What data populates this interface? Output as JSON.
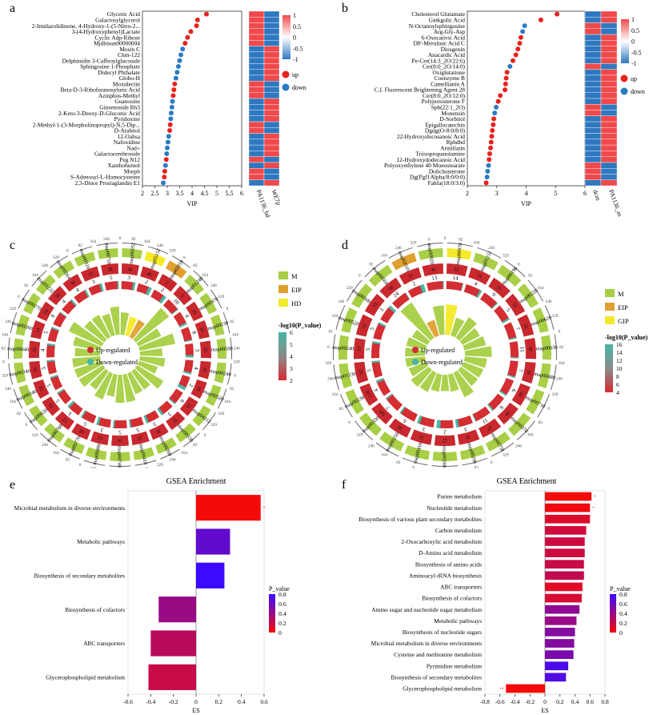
{
  "panel_labels": [
    "a",
    "b",
    "c",
    "d",
    "e",
    "f"
  ],
  "chart_data": [
    {
      "panel": "a",
      "type": "scatter",
      "subtype": "vip-dot-plot-with-heatmap",
      "xlabel": "VIP",
      "xlim": [
        2,
        6
      ],
      "xticks": [
        "2",
        "2.5",
        "3",
        "3.5",
        "4",
        "4.5",
        "5",
        "5.5",
        "6"
      ],
      "categories": [
        "Glyceric Acid",
        "Galactosylglycerol",
        "2-Imidazolidinone, 4-Hydroxy-1-(5-Nitro-2...",
        "3-(4-Hydroxyphenyl)Lactate",
        "Cyclic Adp-Ribose",
        "Mjdbisun00000004",
        "Mosin C",
        "Chm-122",
        "Delphinidin 3-Caffeoylglucoside",
        "Sphingosine 1-Phosphate",
        "Didecyl Phthalate",
        "Globo-H",
        "Moxidectin",
        "Beta-D-3-Ribofuranosyluric Acid",
        "Azinphos-Methyl",
        "Guanosine",
        "Ginsenoside Rh3",
        "2-Keto-3-Deoxy-D-Gluconic Acid",
        "Pyridoxine",
        "2-Methyl-1-(3-Morpholinopropyl)-N,5-Dip...",
        "D-Arabitol",
        "12-Oahsa",
        "Nafoxidine",
        "Nad+",
        "Galactocerebroside",
        "Peg N12",
        "Xanthohumol",
        "Morph",
        "S-Adenosyl-L-Homocysteine",
        "2,3-Dinor Prostaglandin E1"
      ],
      "vip": [
        4.58,
        4.22,
        4.18,
        3.95,
        3.82,
        3.72,
        3.62,
        3.55,
        3.5,
        3.45,
        3.4,
        3.35,
        3.3,
        3.27,
        3.24,
        3.21,
        3.19,
        3.16,
        3.14,
        3.12,
        3.1,
        3.06,
        3.03,
        3.0,
        2.98,
        2.96,
        2.93,
        2.9,
        2.88,
        2.84
      ],
      "regulation": [
        "up",
        "up",
        "up",
        "up",
        "up",
        "up",
        "down",
        "down",
        "down",
        "down",
        "down",
        "down",
        "up",
        "up",
        "up",
        "down",
        "down",
        "down",
        "down",
        "up",
        "up",
        "down",
        "down",
        "down",
        "down",
        "up",
        "down",
        "up",
        "up",
        "down"
      ],
      "heatmap_columns": [
        "PA1136_bd",
        "WE7p"
      ],
      "heatmap_values": [
        [
          1,
          -1
        ],
        [
          1,
          -1
        ],
        [
          1,
          -1
        ],
        [
          1,
          -1
        ],
        [
          1,
          -1
        ],
        [
          1,
          -1
        ],
        [
          -1,
          1
        ],
        [
          -1,
          1
        ],
        [
          -1,
          1
        ],
        [
          -1,
          1
        ],
        [
          -1,
          1
        ],
        [
          -1,
          1
        ],
        [
          1,
          -1
        ],
        [
          1,
          -1
        ],
        [
          1,
          -1
        ],
        [
          -1,
          1
        ],
        [
          -1,
          1
        ],
        [
          -1,
          1
        ],
        [
          -1,
          1
        ],
        [
          1,
          -1
        ],
        [
          1,
          -1
        ],
        [
          -1,
          1
        ],
        [
          -1,
          1
        ],
        [
          -1,
          1
        ],
        [
          -1,
          1
        ],
        [
          1,
          -1
        ],
        [
          -1,
          1
        ],
        [
          1,
          -1
        ],
        [
          1,
          -1
        ],
        [
          -1,
          1
        ]
      ],
      "colorbar_ticks": [
        "1",
        "0.5",
        "0",
        "-0.5",
        "-1"
      ],
      "legend": [
        "up",
        "down"
      ],
      "colors": {
        "up": "#e8211d",
        "down": "#2a7bc4",
        "high": "#f0494b",
        "low": "#2f78c0"
      }
    },
    {
      "panel": "b",
      "type": "scatter",
      "subtype": "vip-dot-plot-with-heatmap",
      "xlabel": "VIP",
      "xlim": [
        2,
        6
      ],
      "xticks": [
        "2",
        "3",
        "4",
        "5",
        "6"
      ],
      "categories": [
        "Cholesterol Glutamate",
        "Ginkgolic Acid",
        "N-Octanoylsphingosine",
        "Arg-Gly-Asp",
        "6-Oxocativic Acid",
        "D8'-Merulinic Acid C",
        "Diosgenin",
        "Anacardic Acid",
        "Pe-Cer(14:3_2O/22:6)",
        "Cer(8:0_2O/14:0)",
        "Oxiglutatione",
        "Coenzyme B",
        "Camellianin A",
        "C.I. Fluorescent Brightening Agent 28",
        "Cer(8:0_2O/12:0)",
        "Polyporusterone F",
        "Spb(22:1_2O)",
        "Monensin",
        "D-Sorbitol",
        "Epigallocatechin",
        "Dgdg(O-8:0/8:0)",
        "22-Hydroxydocosanoic Acid",
        "Rphdhd",
        "Armillatin",
        "Triisopropanolamine",
        "12-Hydroxydodecanoic Acid",
        "Polyoxyethylene 40 Monostearate",
        "Dolichosterone",
        "Dg(Pgf1Alpha/8:0/0:0)",
        "Fahfa(18:0/3:0)"
      ],
      "vip": [
        5.05,
        4.5,
        3.95,
        3.88,
        3.82,
        3.78,
        3.72,
        3.65,
        3.55,
        3.45,
        3.35,
        3.32,
        3.3,
        3.28,
        3.12,
        3.05,
        2.98,
        2.93,
        2.9,
        2.88,
        2.85,
        2.83,
        2.81,
        2.79,
        2.76,
        2.74,
        2.72,
        2.69,
        2.67,
        2.64
      ],
      "regulation": [
        "up",
        "up",
        "down",
        "down",
        "up",
        "up",
        "up",
        "up",
        "up",
        "down",
        "up",
        "up",
        "up",
        "up",
        "up",
        "up",
        "down",
        "down",
        "up",
        "up",
        "up",
        "up",
        "up",
        "up",
        "up",
        "up",
        "down",
        "down",
        "down",
        "up"
      ],
      "heatmap_columns": [
        "dcas",
        "PA1136_as"
      ],
      "heatmap_values": [
        [
          -1,
          1
        ],
        [
          -1,
          1
        ],
        [
          1,
          -1
        ],
        [
          1,
          -1
        ],
        [
          -1,
          1
        ],
        [
          -1,
          1
        ],
        [
          -1,
          1
        ],
        [
          -1,
          1
        ],
        [
          -1,
          1
        ],
        [
          1,
          -1
        ],
        [
          -1,
          1
        ],
        [
          -1,
          1
        ],
        [
          -1,
          1
        ],
        [
          -1,
          1
        ],
        [
          -1,
          1
        ],
        [
          -1,
          1
        ],
        [
          1,
          -1
        ],
        [
          1,
          -1
        ],
        [
          -1,
          1
        ],
        [
          -1,
          1
        ],
        [
          -1,
          1
        ],
        [
          -1,
          1
        ],
        [
          -1,
          1
        ],
        [
          -1,
          1
        ],
        [
          -1,
          1
        ],
        [
          -1,
          1
        ],
        [
          1,
          -1
        ],
        [
          1,
          -1
        ],
        [
          1,
          -1
        ],
        [
          -1,
          1
        ]
      ],
      "colorbar_ticks": [
        "1",
        "0.5",
        "0",
        "-0.5",
        "-1"
      ],
      "legend": [
        "up",
        "down"
      ],
      "colors": {
        "up": "#e8211d",
        "down": "#2a7bc4",
        "high": "#f0494b",
        "low": "#2f78c0"
      }
    },
    {
      "panel": "c",
      "type": "circos",
      "categories": [
        "map00052",
        "map05152",
        "map02010",
        "map01240",
        "map00970",
        "map00230",
        "map00500",
        "map00240",
        "map00520",
        "map04212",
        "map00330",
        "map00260",
        "map00410",
        "map00740",
        "map00480",
        "map00770",
        "map00760",
        "map00620",
        "map00340",
        "map00340",
        "map00640",
        "map00360",
        "map00270",
        "map01232",
        "map00564",
        "map00310",
        "map00710"
      ],
      "kegg_class": [
        "M",
        "HD",
        "EIP",
        "M",
        "M",
        "M",
        "M",
        "M",
        "M",
        "M",
        "M",
        "M",
        "M",
        "M",
        "M",
        "M",
        "M",
        "M",
        "M",
        "M",
        "M",
        "M",
        "M",
        "M",
        "M",
        "M",
        "M"
      ],
      "outer_counts": [
        "46",
        "46",
        "2",
        "5",
        "19",
        "87",
        "25",
        "35",
        "29",
        "11",
        "32",
        "35",
        "35",
        "16",
        "52",
        "65",
        "12",
        "29",
        "32",
        "35",
        "33",
        "21",
        "34",
        "50",
        "38",
        "22",
        "38"
      ],
      "up_regulated": [
        3,
        2,
        2,
        10,
        4,
        8,
        3,
        4,
        2,
        6,
        3,
        3,
        5,
        5,
        3,
        5,
        3,
        5,
        5,
        5,
        4,
        5,
        8,
        4,
        4,
        3,
        5
      ],
      "legend_class": [
        "M",
        "EIP",
        "HD"
      ],
      "legend_reg": [
        "Up-regulated",
        "Down-regulated"
      ],
      "colorbar_title": "-log10(P_value)",
      "colorbar_ticks": [
        "6",
        "5",
        "4",
        "3",
        "2"
      ],
      "scale_ticks": [
        "0",
        "82",
        "164",
        "246",
        "329"
      ],
      "colors": {
        "M": "#a8cf45",
        "EIP": "#e0a030",
        "HD": "#f4ea2a",
        "GIP": "#f4ea2a",
        "up": "#d42d32",
        "down": "#47b6a6",
        "ring": "#c8282e"
      }
    },
    {
      "panel": "d",
      "type": "circos",
      "categories": [
        "map00970",
        "map01232",
        "map00190",
        "map00220",
        "map00620",
        "map00630",
        "map00480",
        "map00710",
        "map00270",
        "map00750",
        "map00290",
        "map00260",
        "map00410",
        "map00250",
        "map00330",
        "map00230",
        "map01230",
        "map00240",
        "map00520",
        "map00500",
        "map00564",
        "map02010",
        "map00920"
      ],
      "kegg_class": [
        "GIP",
        "M",
        "M",
        "M",
        "M",
        "M",
        "M",
        "M",
        "M",
        "M",
        "M",
        "M",
        "M",
        "M",
        "M",
        "M",
        "M",
        "M",
        "M",
        "M",
        "M",
        "EIP",
        "M"
      ],
      "outer_counts": [
        "92",
        "14",
        "25",
        "55",
        "36",
        "38",
        "38",
        "16",
        "39",
        "47",
        "33",
        "22",
        "35",
        "28",
        "320",
        "138",
        "92",
        "17",
        "25",
        "33",
        "50",
        "15",
        "46"
      ],
      "up_regulated": [
        14,
        4,
        9,
        5,
        7,
        11,
        7,
        6,
        6,
        11,
        3,
        2,
        3,
        6,
        7,
        4,
        5,
        5,
        5,
        3,
        24,
        2,
        13
      ],
      "legend_class": [
        "M",
        "EIP",
        "GIP"
      ],
      "legend_reg": [
        "Up-regulated",
        "Down-regulated"
      ],
      "colorbar_title": "-log10(P_value)",
      "colorbar_ticks": [
        "16",
        "14",
        "12",
        "10",
        "8",
        "6",
        "4"
      ],
      "scale_ticks": [
        "0",
        "82",
        "164",
        "246",
        "329"
      ],
      "colors": {
        "M": "#a8cf45",
        "EIP": "#e0a030",
        "HD": "#f4ea2a",
        "GIP": "#f4ea2a",
        "up": "#d42d32",
        "down": "#47b6a6",
        "ring": "#c8282e"
      }
    },
    {
      "panel": "e",
      "type": "bar",
      "orientation": "horizontal",
      "title": "GSEA Enrichment",
      "xlabel": "ES",
      "xlim": [
        -0.6,
        0.6
      ],
      "xticks": [
        "-0.6",
        "-0.4",
        "-0.2",
        "0",
        "0.2",
        "0.4",
        "0.6"
      ],
      "categories": [
        "Microbial metabolism in diverse environments",
        "Metabolic pathways",
        "Biosynthesis of secondary metabolites",
        "Biosynthesis of cofactors",
        "ABC transporters",
        "Glycerophospholipid metabolism"
      ],
      "values": [
        0.57,
        0.3,
        0.25,
        -0.33,
        -0.4,
        -0.42
      ],
      "p_values": [
        0.0,
        0.72,
        0.9,
        0.45,
        0.3,
        0.22
      ],
      "annotations": [
        "*",
        "",
        "",
        "",
        "",
        ""
      ],
      "colorbar_title": "P_value",
      "colorbar_ticks": [
        "0.8",
        "0.6",
        "0.4",
        "0.2",
        "0"
      ],
      "colors": {
        "low_p": "#f50a0a",
        "high_p": "#3c0aff"
      }
    },
    {
      "panel": "f",
      "type": "bar",
      "orientation": "horizontal",
      "title": "GSEA Enrichment",
      "xlabel": "ES",
      "xlim": [
        -0.8,
        0.8
      ],
      "xticks": [
        "-0.8",
        "-0.6",
        "-0.4",
        "-0.2",
        "0",
        "0.2",
        "0.4",
        "0.6",
        "0.8"
      ],
      "categories": [
        "Purine metabolism",
        "Nucleotide metabolism",
        "Biosynthesis of various plant secondary metabolites",
        "Carbon metabolism",
        "2-Oxocarboxylic acid metabolism",
        "D-Amino acid metabolism",
        "Biosynthesis of amino acids",
        "Aminoacyl-tRNA biosynthesis",
        "ABC transporters",
        "Biosynthesis of cofactors",
        "Amino sugar and nucleotide sugar metabolism",
        "Metabolic pathways",
        "Biosynthesis of nucleotide sugars",
        "Microbial metabolism in diverse environments",
        "Cysteine and methionine metabolism",
        "Pyrimidine metabolism",
        "Biosynthesis of secondary metabolites",
        "Glycerophospholipid metabolism"
      ],
      "values": [
        0.62,
        0.6,
        0.6,
        0.55,
        0.53,
        0.53,
        0.52,
        0.52,
        0.5,
        0.49,
        0.46,
        0.42,
        0.4,
        0.39,
        0.38,
        0.31,
        0.28,
        -0.52
      ],
      "p_values": [
        0.0,
        0.02,
        0.12,
        0.18,
        0.2,
        0.2,
        0.22,
        0.25,
        0.1,
        0.15,
        0.5,
        0.45,
        0.55,
        0.55,
        0.6,
        0.82,
        0.8,
        0.0
      ],
      "annotations": [
        "*",
        "*",
        "",
        "",
        "",
        "",
        "",
        "",
        "",
        "",
        "",
        "",
        "",
        "",
        "",
        "",
        "",
        "**"
      ],
      "colorbar_title": "P_value",
      "colorbar_ticks": [
        "0.8",
        "0.6",
        "0.4",
        "0.2",
        "0"
      ],
      "colors": {
        "low_p": "#f50a0a",
        "high_p": "#3c0aff"
      }
    }
  ]
}
